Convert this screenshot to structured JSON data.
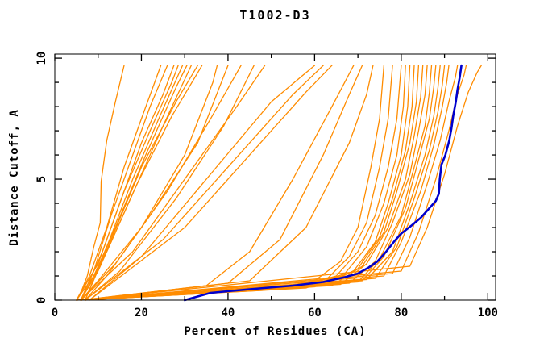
{
  "chart_data": {
    "type": "line",
    "title": "T1002-D3",
    "xlabel": "Percent of Residues (CA)",
    "ylabel": "Distance Cutoff, A",
    "xlim": [
      0,
      101.8
    ],
    "ylim": [
      0,
      10.17
    ],
    "x_major_ticks": [
      0,
      20,
      40,
      60,
      80,
      100
    ],
    "x_minor_ticks": [
      10,
      30,
      50,
      70,
      90
    ],
    "y_major_ticks": [
      0,
      5,
      10
    ],
    "y_minor_ticks": [
      1,
      2,
      3,
      4,
      6,
      7,
      8,
      9
    ],
    "grid": false,
    "legend_position": "none",
    "colors": {
      "model": "#FF8C00",
      "highlight": "#0000CD",
      "axis": "#000000",
      "background": "#FFFFFF"
    },
    "highlight_curve": {
      "points": [
        [
          30,
          0
        ],
        [
          33,
          0.15
        ],
        [
          36,
          0.3
        ],
        [
          45,
          0.45
        ],
        [
          55,
          0.6
        ],
        [
          62,
          0.75
        ],
        [
          67,
          0.95
        ],
        [
          70,
          1.1
        ],
        [
          72.5,
          1.35
        ],
        [
          74.5,
          1.6
        ],
        [
          76.5,
          2
        ],
        [
          78.5,
          2.45
        ],
        [
          80,
          2.75
        ],
        [
          82.5,
          3.1
        ],
        [
          84.5,
          3.4
        ],
        [
          86,
          3.7
        ],
        [
          88,
          4.1
        ],
        [
          88.7,
          4.4
        ],
        [
          88.9,
          5
        ],
        [
          89.3,
          5.6
        ],
        [
          90.2,
          6
        ],
        [
          91.1,
          6.6
        ],
        [
          91.6,
          7.1
        ],
        [
          92,
          7.6
        ],
        [
          92.6,
          8.2
        ],
        [
          93,
          8.7
        ],
        [
          93.5,
          9.2
        ],
        [
          93.9,
          9.7
        ]
      ]
    },
    "model_curves": [
      [
        [
          5,
          0
        ],
        [
          6,
          0.3
        ],
        [
          7.5,
          1
        ],
        [
          9,
          2.2
        ],
        [
          10.5,
          3.2
        ],
        [
          10.7,
          4.9
        ],
        [
          12,
          6.6
        ],
        [
          14,
          8.2
        ],
        [
          16,
          9.7
        ]
      ],
      [
        [
          5,
          0
        ],
        [
          6.5,
          0.5
        ],
        [
          8,
          1
        ],
        [
          12,
          3
        ],
        [
          16,
          5.5
        ],
        [
          20,
          7.5
        ],
        [
          24.5,
          9.7
        ]
      ],
      [
        [
          6,
          0
        ],
        [
          9,
          1.2
        ],
        [
          13,
          3.5
        ],
        [
          18,
          6
        ],
        [
          22,
          8
        ],
        [
          26,
          9.7
        ]
      ],
      [
        [
          5,
          0
        ],
        [
          10,
          1.5
        ],
        [
          15,
          4
        ],
        [
          20,
          6.5
        ],
        [
          25,
          8.5
        ],
        [
          27.5,
          9.7
        ]
      ],
      [
        [
          6,
          0
        ],
        [
          11,
          2
        ],
        [
          16,
          4.5
        ],
        [
          22,
          7
        ],
        [
          27,
          9
        ],
        [
          28.5,
          9.7
        ]
      ],
      [
        [
          7,
          0
        ],
        [
          12,
          2.2
        ],
        [
          18,
          5
        ],
        [
          24,
          7.5
        ],
        [
          29.5,
          9.7
        ]
      ],
      [
        [
          5,
          0
        ],
        [
          9,
          1
        ],
        [
          14,
          3
        ],
        [
          21,
          6
        ],
        [
          28,
          8.8
        ],
        [
          30.5,
          9.7
        ]
      ],
      [
        [
          6,
          0
        ],
        [
          10,
          1.2
        ],
        [
          17,
          4
        ],
        [
          25,
          7.2
        ],
        [
          31.5,
          9.7
        ]
      ],
      [
        [
          7,
          0
        ],
        [
          13,
          2.5
        ],
        [
          20,
          5.5
        ],
        [
          28,
          8.2
        ],
        [
          33,
          9.7
        ]
      ],
      [
        [
          6,
          0
        ],
        [
          12,
          2
        ],
        [
          19,
          4.8
        ],
        [
          27,
          7.6
        ],
        [
          34,
          9.7
        ]
      ],
      [
        [
          6,
          0
        ],
        [
          10,
          0.8
        ],
        [
          20,
          3
        ],
        [
          30,
          6
        ],
        [
          36.5,
          9
        ],
        [
          37.5,
          9.7
        ]
      ],
      [
        [
          7,
          0
        ],
        [
          12,
          1
        ],
        [
          22,
          3.5
        ],
        [
          33,
          6.5
        ],
        [
          40,
          9.7
        ]
      ],
      [
        [
          6,
          0
        ],
        [
          14,
          1.5
        ],
        [
          26,
          4.5
        ],
        [
          36,
          7.5
        ],
        [
          43,
          9.7
        ]
      ],
      [
        [
          7,
          0
        ],
        [
          15,
          1.2
        ],
        [
          28,
          4.2
        ],
        [
          39,
          7.2
        ],
        [
          46,
          9.7
        ]
      ],
      [
        [
          6,
          0
        ],
        [
          18,
          2
        ],
        [
          30,
          5
        ],
        [
          42,
          8
        ],
        [
          48.5,
          9.7
        ]
      ],
      [
        [
          8,
          0
        ],
        [
          20,
          1.8
        ],
        [
          35,
          5
        ],
        [
          50,
          8.2
        ],
        [
          60,
          9.7
        ]
      ],
      [
        [
          7,
          0
        ],
        [
          25,
          2.5
        ],
        [
          40,
          5.5
        ],
        [
          55,
          8.5
        ],
        [
          62,
          9.7
        ]
      ],
      [
        [
          8,
          0
        ],
        [
          30,
          3
        ],
        [
          45,
          6
        ],
        [
          58,
          8.6
        ],
        [
          64,
          9.7
        ]
      ],
      [
        [
          6,
          0
        ],
        [
          35,
          0.6
        ],
        [
          45,
          2
        ],
        [
          55,
          5
        ],
        [
          64,
          8
        ],
        [
          69,
          9.7
        ]
      ],
      [
        [
          7,
          0
        ],
        [
          40,
          0.7
        ],
        [
          52,
          2.5
        ],
        [
          62,
          6
        ],
        [
          68,
          8.5
        ],
        [
          71,
          9.7
        ]
      ],
      [
        [
          6,
          0
        ],
        [
          45,
          0.8
        ],
        [
          58,
          3
        ],
        [
          68,
          6.5
        ],
        [
          72,
          8.5
        ],
        [
          73.5,
          9.7
        ]
      ],
      [
        [
          5,
          0
        ],
        [
          48,
          0.4
        ],
        [
          60,
          0.8
        ],
        [
          66,
          1.6
        ],
        [
          70,
          3
        ],
        [
          73,
          5.5
        ],
        [
          75,
          7.5
        ],
        [
          76,
          9.7
        ]
      ],
      [
        [
          6,
          0
        ],
        [
          52,
          0.45
        ],
        [
          63,
          0.9
        ],
        [
          68,
          1.8
        ],
        [
          72,
          3.2
        ],
        [
          75,
          5.5
        ],
        [
          77,
          7.5
        ],
        [
          78,
          9.7
        ]
      ],
      [
        [
          5,
          0
        ],
        [
          55,
          0.5
        ],
        [
          65,
          1
        ],
        [
          70,
          2
        ],
        [
          74,
          3.5
        ],
        [
          77,
          5.5
        ],
        [
          79,
          7.5
        ],
        [
          80,
          9.7
        ]
      ],
      [
        [
          6,
          0
        ],
        [
          58,
          0.5
        ],
        [
          67,
          1.1
        ],
        [
          72,
          2.2
        ],
        [
          76,
          4
        ],
        [
          79,
          6
        ],
        [
          80.5,
          8
        ],
        [
          81,
          9.7
        ]
      ],
      [
        [
          7,
          0
        ],
        [
          60,
          0.55
        ],
        [
          69,
          1.2
        ],
        [
          74,
          2.4
        ],
        [
          77,
          4
        ],
        [
          80,
          6
        ],
        [
          81.5,
          8
        ],
        [
          82,
          9.7
        ]
      ],
      [
        [
          5,
          0
        ],
        [
          62,
          0.6
        ],
        [
          70,
          1.3
        ],
        [
          75,
          2.6
        ],
        [
          78,
          4.2
        ],
        [
          81,
          6.2
        ],
        [
          82.5,
          8
        ],
        [
          83,
          9.7
        ]
      ],
      [
        [
          6,
          0
        ],
        [
          64,
          0.6
        ],
        [
          71,
          1.4
        ],
        [
          76,
          2.8
        ],
        [
          79,
          4.5
        ],
        [
          82,
          6.5
        ],
        [
          83.5,
          8.2
        ],
        [
          84,
          9.7
        ]
      ],
      [
        [
          7,
          0
        ],
        [
          66,
          0.65
        ],
        [
          72,
          1.5
        ],
        [
          77,
          3
        ],
        [
          81,
          5
        ],
        [
          83,
          6.8
        ],
        [
          84.5,
          8.4
        ],
        [
          85,
          9.7
        ]
      ],
      [
        [
          6,
          0
        ],
        [
          68,
          0.7
        ],
        [
          74,
          1.6
        ],
        [
          78,
          3.2
        ],
        [
          82,
          5.2
        ],
        [
          84,
          7
        ],
        [
          85.5,
          8.5
        ],
        [
          86,
          9.7
        ]
      ],
      [
        [
          5,
          0
        ],
        [
          70,
          0.75
        ],
        [
          75,
          1.7
        ],
        [
          80,
          3.5
        ],
        [
          83,
          5.5
        ],
        [
          85.5,
          7.2
        ],
        [
          86.5,
          8.6
        ],
        [
          87,
          9.7
        ]
      ],
      [
        [
          6,
          0
        ],
        [
          71,
          0.8
        ],
        [
          76,
          1.8
        ],
        [
          81,
          3.8
        ],
        [
          84,
          5.8
        ],
        [
          86.5,
          7.5
        ],
        [
          87.5,
          8.8
        ],
        [
          88,
          9.7
        ]
      ],
      [
        [
          7,
          0
        ],
        [
          72,
          0.85
        ],
        [
          78,
          2
        ],
        [
          82,
          4
        ],
        [
          85.5,
          6
        ],
        [
          87.5,
          7.6
        ],
        [
          88.5,
          8.8
        ],
        [
          89,
          9.7
        ]
      ],
      [
        [
          6,
          0
        ],
        [
          74,
          0.9
        ],
        [
          79,
          2.2
        ],
        [
          83,
          4.2
        ],
        [
          86.5,
          6.2
        ],
        [
          88.5,
          7.8
        ],
        [
          89.5,
          8.9
        ],
        [
          90,
          9.7
        ]
      ],
      [
        [
          5,
          0
        ],
        [
          76,
          1
        ],
        [
          80,
          2.4
        ],
        [
          84.5,
          4.5
        ],
        [
          87.5,
          6.4
        ],
        [
          89.5,
          8
        ],
        [
          90.5,
          9
        ],
        [
          91,
          9.7
        ]
      ],
      [
        [
          6,
          0
        ],
        [
          78,
          1.1
        ],
        [
          82,
          2.6
        ],
        [
          86,
          4.8
        ],
        [
          89,
          6.6
        ],
        [
          91,
          8.2
        ],
        [
          92.5,
          9.2
        ],
        [
          93,
          9.7
        ]
      ],
      [
        [
          7,
          0
        ],
        [
          80,
          1.2
        ],
        [
          84,
          2.8
        ],
        [
          88,
          5
        ],
        [
          91,
          7
        ],
        [
          93,
          8.5
        ],
        [
          94.5,
          9.3
        ],
        [
          95,
          9.7
        ]
      ],
      [
        [
          6,
          0
        ],
        [
          82,
          1.4
        ],
        [
          86,
          3
        ],
        [
          90,
          5.2
        ],
        [
          93,
          7.2
        ],
        [
          95.5,
          8.6
        ],
        [
          97.5,
          9.4
        ],
        [
          98.5,
          9.7
        ]
      ]
    ]
  }
}
